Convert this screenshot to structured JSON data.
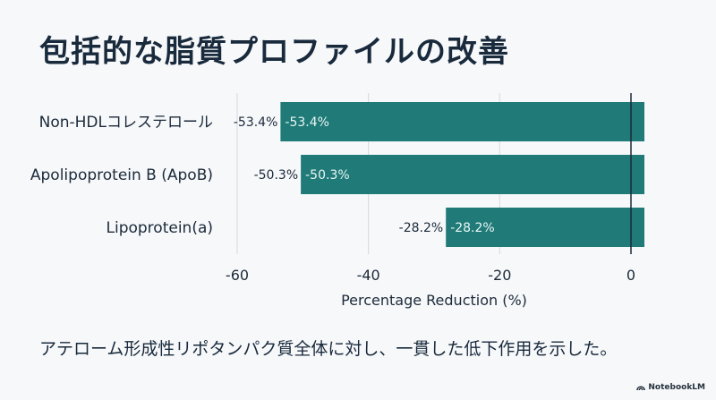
{
  "slide": {
    "title": "包括的な脂質プロファイルの改善",
    "caption": "アテローム形成性リポタンパク質全体に対し、一貫した低下作用を示した。",
    "brand": "NotebookLM"
  },
  "colors": {
    "bar": "#1f7a78",
    "grid": "#d4d8de",
    "zero_line": "#1b2a3a",
    "text": "#1b2a3a",
    "bar_label": "#e9f6f5"
  },
  "chart_data": {
    "type": "bar",
    "orientation": "horizontal",
    "title": "",
    "xlabel": "Percentage Reduction (%)",
    "ylabel": "",
    "categories": [
      "Non-HDLコレステロール",
      "Apolipoprotein B (ApoB)",
      "Lipoprotein(a)"
    ],
    "values": [
      -53.4,
      -50.3,
      -28.2
    ],
    "value_labels": [
      "-53.4%",
      "-50.3%",
      "-28.2%"
    ],
    "xlim": [
      -60,
      0
    ],
    "xticks": [
      -60,
      -40,
      -20,
      0
    ],
    "xtick_labels": [
      "-60",
      "-40",
      "-20",
      "0"
    ],
    "grid": true
  }
}
